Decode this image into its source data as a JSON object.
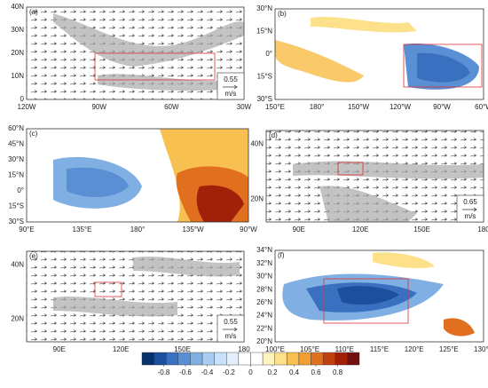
{
  "panels": [
    {
      "label": "(a)",
      "lat_labels": [
        "40N",
        "30N",
        "20N",
        "10N",
        "0"
      ],
      "lon_labels": [
        "120W",
        "90W",
        "60W",
        "30W"
      ],
      "ref_value": 0.55,
      "ref_unit": "m/s"
    },
    {
      "label": "(b)",
      "lat_labels": [
        "30°N",
        "15°N",
        "0°",
        "15°S",
        "30°S"
      ],
      "lon_labels": [
        "150°E",
        "180°",
        "150°W",
        "120°W",
        "90°W",
        "60°W"
      ]
    },
    {
      "label": "(c)",
      "lat_labels": [
        "60°N",
        "45°N",
        "30°N",
        "15°N",
        "0°",
        "15°S",
        "30°S"
      ],
      "lon_labels": [
        "90°E",
        "135°E",
        "180°",
        "135°W",
        "90°W"
      ]
    },
    {
      "label": "(d)",
      "lat_labels": [
        "40N",
        "20N"
      ],
      "lon_labels": [
        "90E",
        "120E",
        "150E",
        "180"
      ],
      "ref_value": 0.65,
      "ref_unit": "m/s"
    },
    {
      "label": "(e)",
      "lat_labels": [
        "40N",
        "20N"
      ],
      "lon_labels": [
        "90E",
        "120E",
        "150E",
        "180"
      ],
      "ref_value": 0.55,
      "ref_unit": "m/s"
    },
    {
      "label": "(f)",
      "lat_labels": [
        "34°N",
        "32°N",
        "30°N",
        "28°N",
        "26°N",
        "24°N",
        "22°N",
        "20°N"
      ],
      "lon_labels": [
        "100°E",
        "105°E",
        "110°E",
        "115°E",
        "120°E",
        "125°E",
        "130°E"
      ]
    }
  ],
  "colorbar": {
    "ticks": [
      -0.8,
      -0.6,
      -0.4,
      -0.2,
      0,
      0.2,
      0.4,
      0.6,
      0.8
    ],
    "lim": [
      -1,
      1
    ],
    "colors": [
      "#08306b",
      "#1c4f9c",
      "#3a70c0",
      "#5a90d3",
      "#80b0e3",
      "#a8cdf0",
      "#c8e0f8",
      "#e3effc",
      "#ffffff",
      "#ffffff",
      "#fff3c0",
      "#fde08a",
      "#f8c050",
      "#f0a030",
      "#e07020",
      "#c04010",
      "#a02008",
      "#701010"
    ]
  }
}
